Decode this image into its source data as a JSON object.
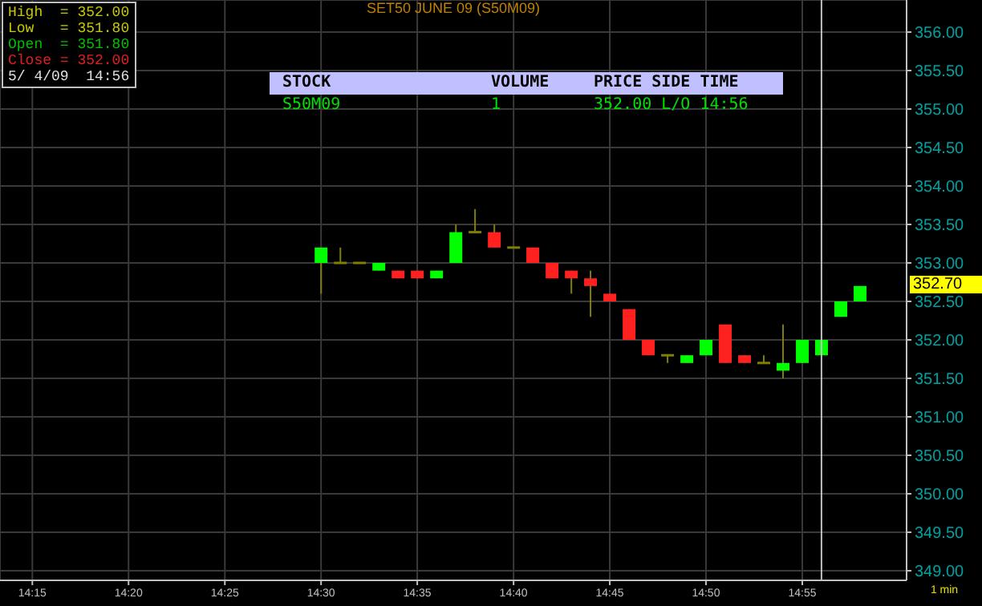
{
  "chart_data": {
    "type": "candlestick",
    "title": "SET50  JUNE  09  (S50M09)",
    "x": [
      14.5,
      14.5167,
      14.5333,
      14.55,
      14.5667,
      14.5833,
      14.6,
      14.6167,
      14.6333,
      14.65,
      14.6667,
      14.6833,
      14.7,
      14.7167,
      14.7333,
      14.75,
      14.7667,
      14.7833,
      14.8,
      14.8167,
      14.8333,
      14.85,
      14.8667,
      14.8833,
      14.9,
      14.9167,
      14.9333,
      14.95,
      14.9667
    ],
    "ohlc": [
      [
        353.0,
        353.2,
        352.6,
        353.2
      ],
      [
        353.0,
        353.2,
        353.0,
        353.0
      ],
      [
        353.0,
        353.0,
        353.0,
        353.0
      ],
      [
        352.9,
        353.0,
        352.9,
        353.0
      ],
      [
        352.9,
        352.9,
        352.8,
        352.8
      ],
      [
        352.9,
        352.9,
        352.8,
        352.8
      ],
      [
        352.8,
        352.9,
        352.8,
        352.9
      ],
      [
        353.0,
        353.5,
        353.0,
        353.4
      ],
      [
        353.4,
        353.7,
        353.4,
        353.4
      ],
      [
        353.4,
        353.5,
        353.2,
        353.2
      ],
      [
        353.2,
        353.2,
        353.2,
        353.2
      ],
      [
        353.2,
        353.2,
        353.0,
        353.0
      ],
      [
        353.0,
        353.0,
        352.8,
        352.8
      ],
      [
        352.9,
        352.9,
        352.6,
        352.8
      ],
      [
        352.8,
        352.9,
        352.3,
        352.7
      ],
      [
        352.6,
        352.6,
        352.5,
        352.5
      ],
      [
        352.4,
        352.4,
        352.0,
        352.0
      ],
      [
        352.0,
        352.0,
        351.8,
        351.8
      ],
      [
        351.8,
        351.8,
        351.7,
        351.8
      ],
      [
        351.7,
        351.8,
        351.7,
        351.8
      ],
      [
        351.8,
        352.0,
        351.8,
        352.0
      ],
      [
        352.2,
        352.2,
        351.7,
        351.7
      ],
      [
        351.8,
        351.8,
        351.7,
        351.7
      ],
      [
        351.7,
        351.8,
        351.7,
        351.7
      ],
      [
        351.6,
        352.2,
        351.5,
        351.7
      ],
      [
        351.7,
        352.0,
        351.7,
        352.0
      ],
      [
        351.8,
        352.0,
        351.8,
        352.0
      ],
      [
        352.3,
        352.5,
        352.3,
        352.5
      ],
      [
        352.5,
        352.7,
        352.5,
        352.7
      ]
    ],
    "colors": [
      "#00ff00",
      "#808000",
      "#808000",
      "#00ff00",
      "#ff2020",
      "#ff2020",
      "#00ff00",
      "#00ff00",
      "#808000",
      "#ff2020",
      "#808000",
      "#ff2020",
      "#ff2020",
      "#ff2020",
      "#ff2020",
      "#ff2020",
      "#ff2020",
      "#ff2020",
      "#808000",
      "#00ff00",
      "#00ff00",
      "#ff2020",
      "#ff2020",
      "#808000",
      "#00ff00",
      "#00ff00",
      "#00ff00",
      "#00ff00",
      "#00ff00"
    ],
    "xlim": [
      14.222,
      15.007
    ],
    "xticks": [
      {
        "value": 14.25,
        "label": "14:15"
      },
      {
        "value": 14.3333,
        "label": "14:20"
      },
      {
        "value": 14.4167,
        "label": "14:25"
      },
      {
        "value": 14.5,
        "label": "14:30"
      },
      {
        "value": 14.5833,
        "label": "14:35"
      },
      {
        "value": 14.6667,
        "label": "14:40"
      },
      {
        "value": 14.75,
        "label": "14:45"
      },
      {
        "value": 14.8333,
        "label": "14:50"
      },
      {
        "value": 14.9167,
        "label": "14:55"
      }
    ],
    "ylim": [
      348.875,
      356.417
    ],
    "yticks": [
      {
        "value": 349,
        "label": "349.00"
      },
      {
        "value": 349.5,
        "label": "349.50"
      },
      {
        "value": 350,
        "label": "350.00"
      },
      {
        "value": 350.5,
        "label": "350.50"
      },
      {
        "value": 351,
        "label": "351.00"
      },
      {
        "value": 351.5,
        "label": "351.50"
      },
      {
        "value": 352,
        "label": "352.00"
      },
      {
        "value": 352.5,
        "label": "352.50"
      },
      {
        "value": 353,
        "label": "353.00"
      },
      {
        "value": 353.5,
        "label": "353.50"
      },
      {
        "value": 354,
        "label": "354.00"
      },
      {
        "value": 354.5,
        "label": "354.50"
      },
      {
        "value": 355,
        "label": "355.00"
      },
      {
        "value": 355.5,
        "label": "355.50"
      },
      {
        "value": 356,
        "label": "356.00"
      }
    ],
    "grid": true,
    "ref_lines": [
      {
        "axis": "x",
        "value": 14.9333,
        "label": null,
        "color": "#c0c0c0"
      }
    ],
    "annotations": [
      "High  = 352.00",
      "Low   = 351.80",
      "Open  = 351.80",
      "Close = 352.00",
      "5/ 4/09  14:56",
      "STOCK",
      "VOLUME",
      "PRICE SIDE TIME",
      "S50M09",
      "1",
      "352.00 L/O 14:56",
      "1 min",
      "352.70"
    ]
  }
}
